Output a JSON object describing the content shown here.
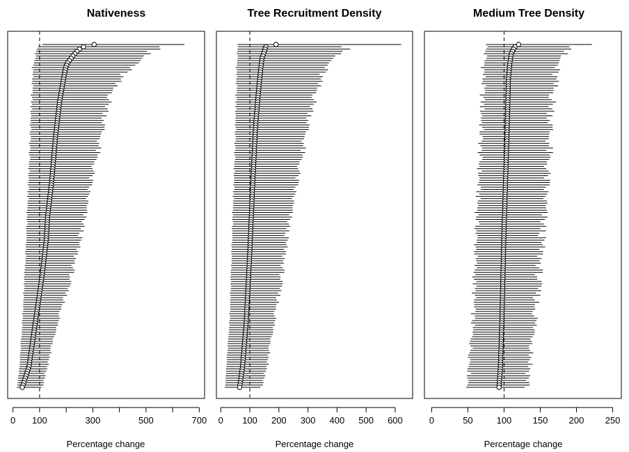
{
  "chart_data": [
    {
      "type": "forest",
      "title": "Nativeness",
      "xlabel": "Percentage change",
      "xlim": [
        -20,
        720
      ],
      "xticks": [
        0,
        100,
        300,
        500,
        700
      ],
      "xtick_labels": [
        "0",
        "100",
        "300",
        "500",
        "700"
      ],
      "extra_ticks": [
        200,
        400,
        600
      ],
      "reference_line": 100,
      "n_points": 150,
      "anchors": {
        "estimate": [
          [
            0,
            305
          ],
          [
            1,
            265
          ],
          [
            2,
            250
          ],
          [
            3,
            240
          ],
          [
            5,
            225
          ],
          [
            8,
            205
          ],
          [
            10,
            198
          ],
          [
            15,
            190
          ],
          [
            25,
            175
          ],
          [
            40,
            160
          ],
          [
            60,
            145
          ],
          [
            75,
            130
          ],
          [
            85,
            125
          ],
          [
            100,
            110
          ],
          [
            120,
            85
          ],
          [
            140,
            60
          ],
          [
            149,
            35
          ]
        ],
        "lower": [
          [
            0,
            115
          ],
          [
            1,
            92
          ],
          [
            4,
            85
          ],
          [
            10,
            75
          ],
          [
            30,
            68
          ],
          [
            60,
            58
          ],
          [
            90,
            48
          ],
          [
            120,
            35
          ],
          [
            140,
            25
          ],
          [
            149,
            15
          ]
        ],
        "upper": [
          [
            0,
            670
          ],
          [
            1,
            570
          ],
          [
            2,
            560
          ],
          [
            3,
            510
          ],
          [
            5,
            490
          ],
          [
            8,
            470
          ],
          [
            12,
            420
          ],
          [
            18,
            380
          ],
          [
            25,
            360
          ],
          [
            40,
            330
          ],
          [
            60,
            290
          ],
          [
            80,
            260
          ],
          [
            100,
            220
          ],
          [
            120,
            170
          ],
          [
            140,
            130
          ],
          [
            149,
            110
          ]
        ]
      }
    },
    {
      "type": "forest",
      "title": "Tree Recruitment Density",
      "xlabel": "Percentage change",
      "xlim": [
        -15,
        660
      ],
      "xticks": [
        0,
        100,
        200,
        300,
        400,
        500,
        600
      ],
      "xtick_labels": [
        "0",
        "100",
        "200",
        "300",
        "400",
        "500",
        "600"
      ],
      "extra_ticks": [],
      "reference_line": 100,
      "n_points": 150,
      "anchors": {
        "estimate": [
          [
            0,
            190
          ],
          [
            1,
            155
          ],
          [
            3,
            150
          ],
          [
            6,
            142
          ],
          [
            10,
            138
          ],
          [
            20,
            130
          ],
          [
            35,
            120
          ],
          [
            60,
            110
          ],
          [
            90,
            100
          ],
          [
            120,
            88
          ],
          [
            140,
            75
          ],
          [
            149,
            65
          ]
        ],
        "lower": [
          [
            0,
            60
          ],
          [
            1,
            58
          ],
          [
            10,
            55
          ],
          [
            40,
            50
          ],
          [
            80,
            40
          ],
          [
            120,
            30
          ],
          [
            149,
            15
          ]
        ],
        "upper": [
          [
            0,
            645
          ],
          [
            1,
            430
          ],
          [
            2,
            450
          ],
          [
            4,
            400
          ],
          [
            8,
            370
          ],
          [
            15,
            340
          ],
          [
            25,
            320
          ],
          [
            40,
            290
          ],
          [
            60,
            260
          ],
          [
            80,
            230
          ],
          [
            100,
            210
          ],
          [
            120,
            185
          ],
          [
            140,
            160
          ],
          [
            149,
            140
          ]
        ]
      }
    },
    {
      "type": "forest",
      "title": "Medium Tree Density",
      "xlabel": "Percentage change",
      "xlim": [
        -10,
        262
      ],
      "xticks": [
        0,
        50,
        100,
        150,
        200,
        250
      ],
      "xtick_labels": [
        "0",
        "50",
        "100",
        "150",
        "200",
        "250"
      ],
      "extra_ticks": [],
      "reference_line": 100,
      "n_points": 150,
      "anchors": {
        "estimate": [
          [
            0,
            120
          ],
          [
            1,
            115
          ],
          [
            2,
            113
          ],
          [
            4,
            110
          ],
          [
            8,
            108
          ],
          [
            15,
            106
          ],
          [
            40,
            104
          ],
          [
            80,
            100
          ],
          [
            120,
            97
          ],
          [
            140,
            95
          ],
          [
            149,
            93
          ]
        ],
        "lower": [
          [
            0,
            78
          ],
          [
            1,
            75
          ],
          [
            10,
            72
          ],
          [
            40,
            68
          ],
          [
            80,
            62
          ],
          [
            120,
            57
          ],
          [
            149,
            50
          ]
        ],
        "upper": [
          [
            0,
            230
          ],
          [
            1,
            197
          ],
          [
            2,
            195
          ],
          [
            3,
            185
          ],
          [
            5,
            178
          ],
          [
            10,
            172
          ],
          [
            20,
            168
          ],
          [
            40,
            163
          ],
          [
            70,
            156
          ],
          [
            100,
            148
          ],
          [
            130,
            140
          ],
          [
            149,
            132
          ]
        ]
      }
    }
  ]
}
